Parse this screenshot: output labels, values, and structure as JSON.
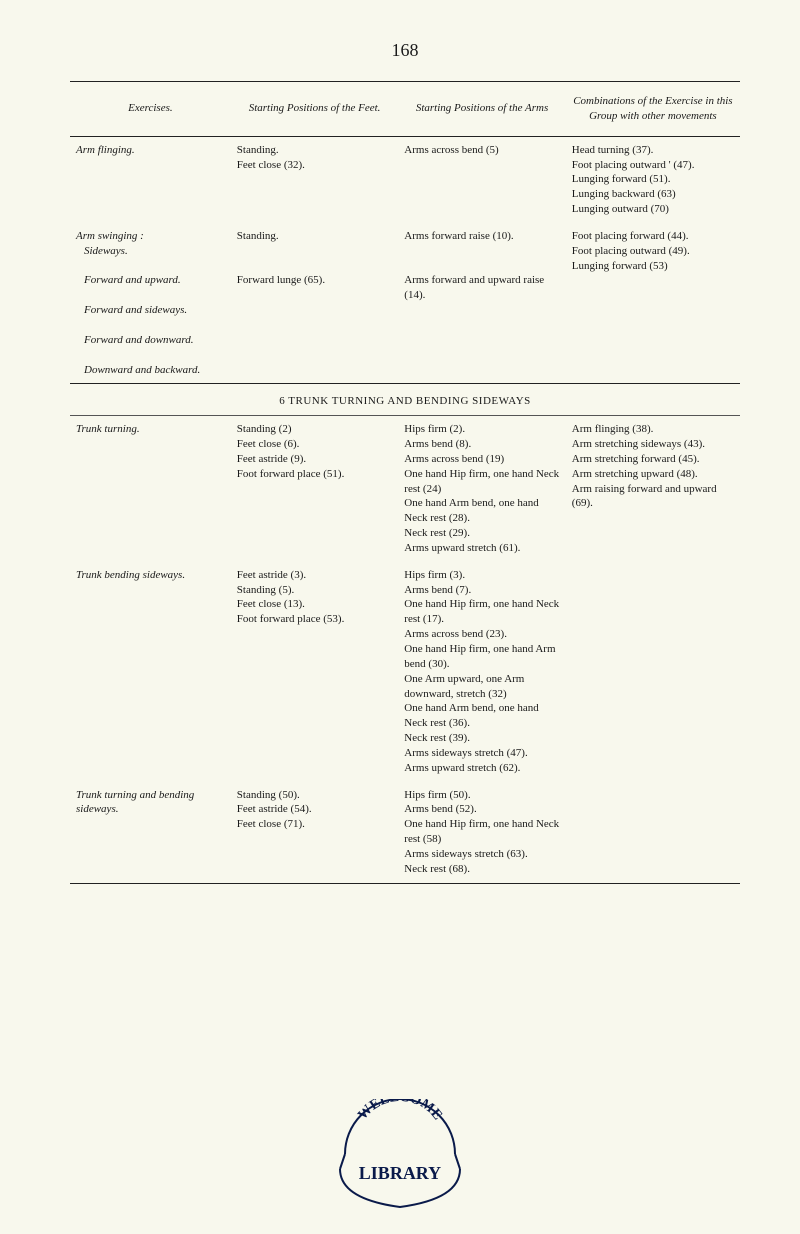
{
  "page_number": "168",
  "headers": {
    "exercises": "Exercises.",
    "feet": "Starting Positions of the Feet.",
    "arms": "Starting Positions of the Arms",
    "comb": "Combinations of the Exercise in this Group with other movements"
  },
  "rows_top": [
    {
      "ex": "Arm flinging.",
      "feet": "Standing.\nFeet close (32).",
      "arms": "Arms across bend (5)",
      "comb": "Head turning (37).\nFoot placing outward ' (47).\nLunging forward (51).\nLunging backward (63)\nLunging outward (70)"
    },
    {
      "ex": "Arm swinging :\n  Sideways.\n  Forward and upward.\n  Forward and sideways.\n  Forward and downward.\n  Downward and backward.",
      "feet": "Standing.\n\n\nForward lunge (65).",
      "arms": "Arms forward raise (10).\n\n\nArms forward and upward raise (14).",
      "comb": "Foot placing forward (44).\nFoot placing outward (49).\nLunging forward (53)"
    }
  ],
  "section6_title": "6 TRUNK TURNING AND BENDING SIDEWAYS",
  "rows_6": [
    {
      "ex": "Trunk turning.",
      "feet": "Standing (2)\nFeet close (6).\nFeet astride (9).\nFoot forward place (51).",
      "arms": "Hips firm (2).\nArms bend (8).\nArms across bend (19)\nOne hand Hip firm, one hand Neck rest (24)\nOne hand Arm bend, one hand Neck rest (28).\nNeck rest (29).\nArms upward stretch (61).",
      "comb": "Arm flinging (38).\nArm stretching sideways (43).\nArm stretching forward (45).\nArm stretching upward (48).\nArm raising forward and upward (69)."
    },
    {
      "ex": "Trunk bending sideways.",
      "feet": "Feet astride (3).\nStanding (5).\nFeet close (13).\nFoot forward place (53).",
      "arms": "Hips firm (3).\nArms bend (7).\nOne hand Hip firm, one hand Neck rest (17).\nArms across bend (23).\nOne hand Hip firm, one hand Arm bend (30).\nOne Arm upward, one Arm downward, stretch (32)\nOne hand Arm bend, one hand Neck rest (36).\nNeck rest (39).\nArms sideways stretch (47).\nArms upward stretch (62).",
      "comb": ""
    },
    {
      "ex": "Trunk turning and bending sideways.",
      "feet": "Standing (50).\nFeet astride (54).\nFeet close (71).",
      "arms": "Hips firm (50).\nArms bend (52).\nOne hand Hip firm, one hand Neck rest (58)\nArms sideways stretch (63).\nNeck rest (68).",
      "comb": ""
    }
  ],
  "stamp": {
    "top_text": "WELLCOME",
    "mid_text": "LIBRARY",
    "color": "#0a1a4a"
  },
  "colors": {
    "page_bg": "#f8f8ed",
    "text": "#1a1a1a",
    "rule": "#222"
  }
}
